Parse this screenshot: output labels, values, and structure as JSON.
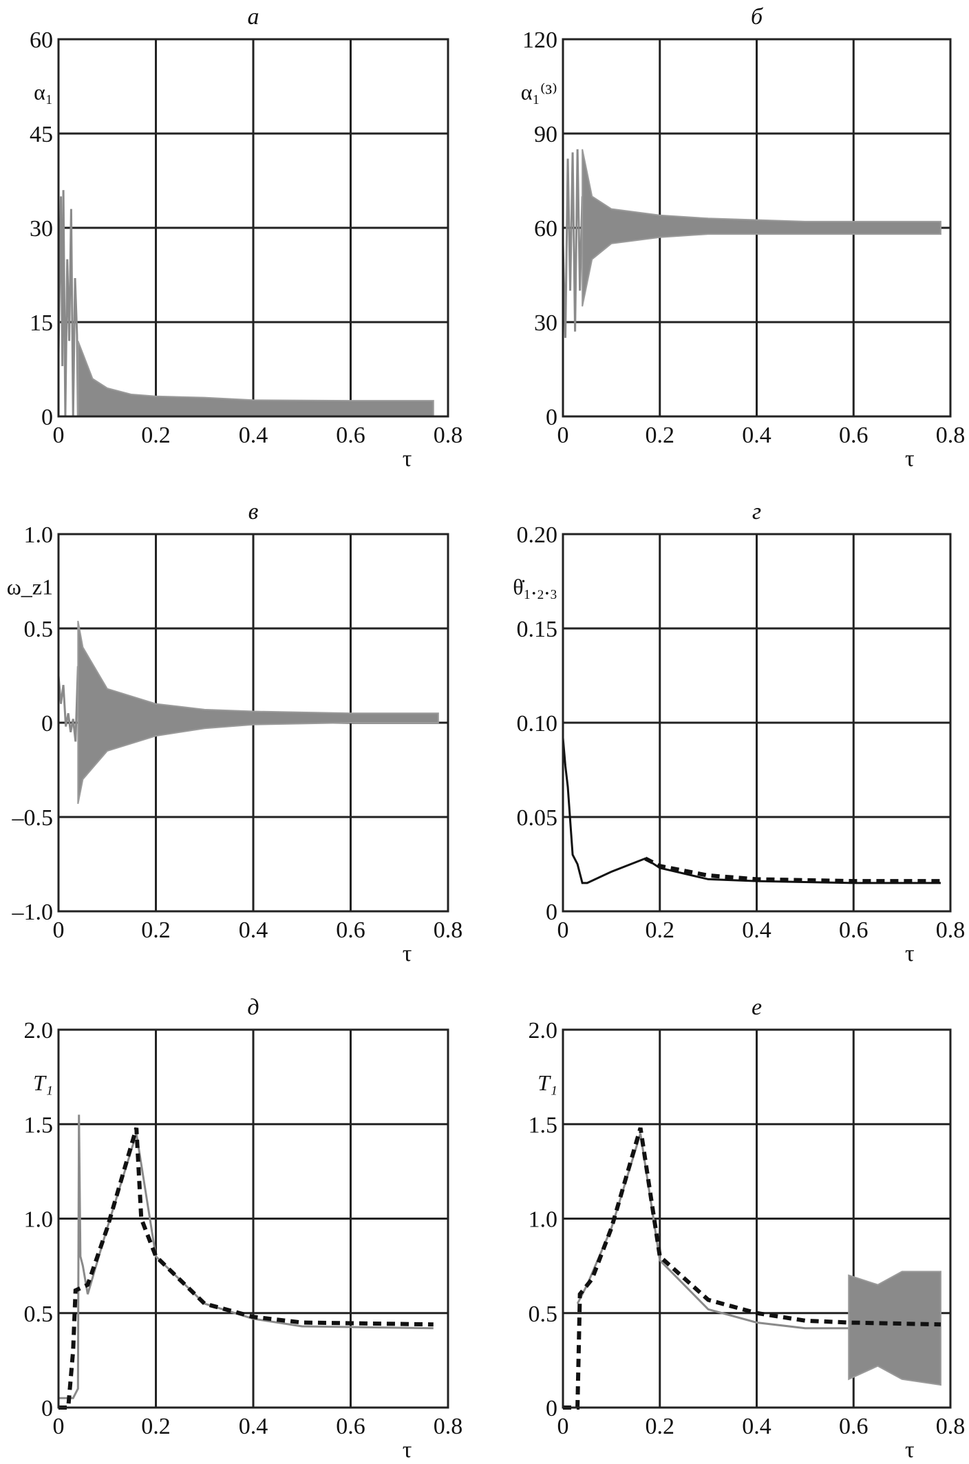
{
  "chart_data": [
    {
      "type": "line",
      "title": "а",
      "ylabel": "α₁",
      "xlabel": "τ",
      "xlim": [
        0,
        0.8
      ],
      "ylim": [
        0,
        60
      ],
      "xticks": [
        "0",
        "0.2",
        "0.4",
        "0.6",
        "0.8"
      ],
      "yticks": [
        "0",
        "15",
        "30",
        "45",
        "60"
      ],
      "grid": true,
      "series": [
        {
          "style": "gray-line",
          "x": [
            0,
            0.005,
            0.008,
            0.01,
            0.014,
            0.018,
            0.022,
            0.026,
            0.03,
            0.034,
            0.038,
            0.04
          ],
          "y": [
            10,
            35,
            8,
            36,
            0,
            25,
            12,
            33,
            0,
            22,
            13,
            0
          ]
        },
        {
          "style": "gray-band",
          "x": [
            0.04,
            0.05,
            0.07,
            0.1,
            0.15,
            0.2,
            0.3,
            0.4,
            0.6,
            0.77
          ],
          "upper": [
            12,
            10,
            6,
            4.5,
            3.5,
            3.2,
            3,
            2.6,
            2.5,
            2.5
          ],
          "lower": [
            0,
            0,
            0,
            0,
            0,
            0,
            0,
            0,
            0,
            0
          ]
        }
      ]
    },
    {
      "type": "line",
      "title": "б",
      "ylabel": "α₁⁽³⁾",
      "xlabel": "τ",
      "xlim": [
        0,
        0.8
      ],
      "ylim": [
        0,
        120
      ],
      "xticks": [
        "0",
        "0.2",
        "0.4",
        "0.6",
        "0.8"
      ],
      "yticks": [
        "0",
        "30",
        "60",
        "90",
        "120"
      ],
      "grid": true,
      "series": [
        {
          "style": "gray-line",
          "x": [
            0,
            0.005,
            0.01,
            0.015,
            0.02,
            0.025,
            0.03,
            0.035,
            0.04
          ],
          "y": [
            55,
            25,
            82,
            40,
            84,
            27,
            85,
            40,
            70
          ]
        },
        {
          "style": "gray-band",
          "x": [
            0.04,
            0.06,
            0.1,
            0.2,
            0.3,
            0.5,
            0.78
          ],
          "upper": [
            85,
            70,
            66,
            64,
            63,
            62,
            62
          ],
          "lower": [
            35,
            50,
            55,
            57,
            58,
            58,
            58
          ]
        }
      ]
    },
    {
      "type": "line",
      "title": "в",
      "ylabel": "ω_z1",
      "xlabel": "τ",
      "xlim": [
        0,
        0.8
      ],
      "ylim": [
        -1.0,
        1.0
      ],
      "xticks": [
        "0",
        "0.2",
        "0.4",
        "0.6",
        "0.8"
      ],
      "yticks": [
        "–1.0",
        "–0.5",
        "0",
        "0.5",
        "1.0"
      ],
      "grid": true,
      "series": [
        {
          "style": "gray-line",
          "x": [
            0,
            0.005,
            0.01,
            0.015,
            0.02,
            0.025,
            0.03,
            0.035,
            0.04
          ],
          "y": [
            0.25,
            0.1,
            0.2,
            -0.02,
            0.05,
            -0.05,
            0.02,
            -0.1,
            0.3
          ]
        },
        {
          "style": "gray-band",
          "x": [
            0.04,
            0.05,
            0.1,
            0.2,
            0.3,
            0.4,
            0.6,
            0.78
          ],
          "upper": [
            0.54,
            0.4,
            0.18,
            0.1,
            0.07,
            0.06,
            0.05,
            0.05
          ],
          "lower": [
            -0.43,
            -0.3,
            -0.15,
            -0.07,
            -0.03,
            -0.01,
            0,
            0
          ]
        }
      ]
    },
    {
      "type": "line",
      "title": "г",
      "ylabel": "θ̇₁.₂.₃",
      "xlabel": "τ",
      "xlim": [
        0,
        0.8
      ],
      "ylim": [
        0,
        0.2
      ],
      "xticks": [
        "0",
        "0.2",
        "0.4",
        "0.6",
        "0.8"
      ],
      "yticks": [
        "0",
        "0.05",
        "0.10",
        "0.15",
        "0.20"
      ],
      "grid": true,
      "series": [
        {
          "style": "black-line",
          "x": [
            0,
            0.005,
            0.01,
            0.02,
            0.03,
            0.04,
            0.05,
            0.1,
            0.17,
            0.2,
            0.3,
            0.4,
            0.6,
            0.78
          ],
          "y": [
            0.092,
            0.077,
            0.066,
            0.03,
            0.025,
            0.015,
            0.015,
            0.021,
            0.028,
            0.023,
            0.017,
            0.016,
            0.015,
            0.015
          ]
        },
        {
          "style": "black-dashed",
          "x": [
            0.17,
            0.2,
            0.3,
            0.4,
            0.6,
            0.78
          ],
          "y": [
            0.028,
            0.024,
            0.019,
            0.017,
            0.016,
            0.016
          ]
        }
      ]
    },
    {
      "type": "line",
      "title": "д",
      "ylabel": "T₁",
      "xlabel": "τ",
      "xlim": [
        0,
        0.8
      ],
      "ylim": [
        0,
        2.0
      ],
      "xticks": [
        "0",
        "0.2",
        "0.4",
        "0.6",
        "0.8"
      ],
      "yticks": [
        "0",
        "0.5",
        "1.0",
        "1.5",
        "2.0"
      ],
      "grid": true,
      "series": [
        {
          "style": "gray-line",
          "x": [
            0,
            0.03,
            0.04,
            0.042,
            0.045,
            0.05,
            0.06,
            0.1,
            0.16,
            0.2,
            0.3,
            0.4,
            0.5,
            0.77
          ],
          "y": [
            0.05,
            0.05,
            0.1,
            1.55,
            0.8,
            0.75,
            0.6,
            0.95,
            1.45,
            0.8,
            0.55,
            0.47,
            0.43,
            0.42
          ]
        },
        {
          "style": "black-dashed",
          "x": [
            0,
            0.02,
            0.03,
            0.035,
            0.06,
            0.1,
            0.16,
            0.17,
            0.2,
            0.3,
            0.4,
            0.5,
            0.77
          ],
          "y": [
            0,
            0,
            0.3,
            0.62,
            0.65,
            0.95,
            1.48,
            1.0,
            0.8,
            0.55,
            0.48,
            0.45,
            0.44
          ]
        }
      ]
    },
    {
      "type": "line",
      "title": "е",
      "ylabel": "T₁",
      "xlabel": "τ",
      "xlim": [
        0,
        0.8
      ],
      "ylim": [
        0,
        2.0
      ],
      "xticks": [
        "0",
        "0.2",
        "0.4",
        "0.6",
        "0.8"
      ],
      "yticks": [
        "0",
        "0.5",
        "1.0",
        "1.5",
        "2.0"
      ],
      "grid": true,
      "series": [
        {
          "style": "gray-line",
          "x": [
            0.03,
            0.05,
            0.1,
            0.16,
            0.2,
            0.3,
            0.4,
            0.5,
            0.59
          ],
          "y": [
            0.55,
            0.65,
            0.95,
            1.45,
            0.78,
            0.52,
            0.45,
            0.42,
            0.42
          ]
        },
        {
          "style": "gray-band",
          "x": [
            0.59,
            0.65,
            0.7,
            0.78
          ],
          "upper": [
            0.7,
            0.65,
            0.72,
            0.72
          ],
          "lower": [
            0.15,
            0.22,
            0.15,
            0.12
          ]
        },
        {
          "style": "black-dashed",
          "x": [
            0,
            0.03,
            0.035,
            0.06,
            0.1,
            0.16,
            0.2,
            0.3,
            0.4,
            0.5,
            0.59,
            0.78
          ],
          "y": [
            0,
            0,
            0.6,
            0.68,
            0.95,
            1.48,
            0.8,
            0.57,
            0.5,
            0.46,
            0.45,
            0.44
          ]
        }
      ]
    }
  ]
}
